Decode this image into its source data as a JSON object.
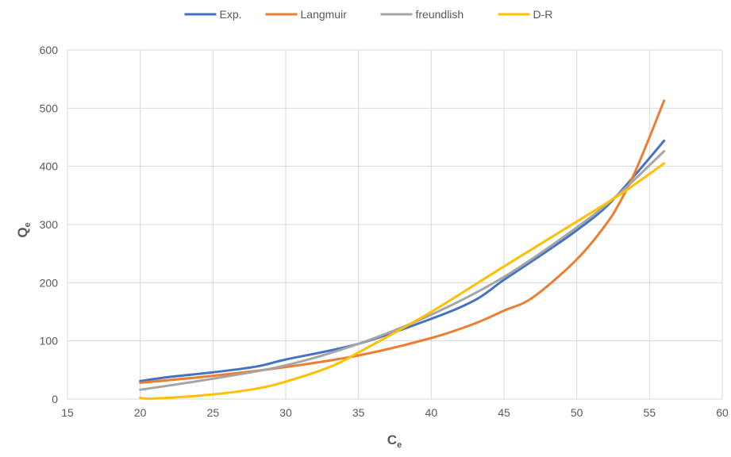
{
  "chart_data": {
    "type": "line",
    "title": "",
    "xlabel": "C",
    "xlabel_sub": "e",
    "ylabel": "Q",
    "ylabel_sub": "e",
    "xlim": [
      15,
      60
    ],
    "ylim": [
      0,
      600
    ],
    "xticks": [
      15,
      20,
      25,
      30,
      35,
      40,
      45,
      50,
      55,
      60
    ],
    "yticks": [
      0,
      100,
      200,
      300,
      400,
      500,
      600
    ],
    "grid": true,
    "legend_position": "top",
    "series": [
      {
        "name": "Exp.",
        "color": "#4472C4",
        "x": [
          20,
          22,
          25,
          28,
          30,
          35,
          40,
          43,
          45,
          48,
          50,
          52,
          54,
          56
        ],
        "y": [
          31,
          38,
          46,
          56,
          68,
          95,
          138,
          170,
          205,
          255,
          290,
          330,
          385,
          444
        ]
      },
      {
        "name": "Langmuir",
        "color": "#ED7D31",
        "x": [
          20,
          25,
          30,
          35,
          40,
          43,
          45,
          47,
          50,
          52,
          53,
          54,
          55,
          56
        ],
        "y": [
          28,
          40,
          55,
          75,
          105,
          130,
          152,
          175,
          240,
          300,
          340,
          390,
          450,
          513
        ]
      },
      {
        "name": "freundlish",
        "color": "#A5A5A5",
        "x": [
          20,
          25,
          30,
          35,
          40,
          45,
          50,
          53,
          56
        ],
        "y": [
          16,
          35,
          58,
          95,
          145,
          210,
          295,
          355,
          426
        ]
      },
      {
        "name": "D-R",
        "color": "#FFC000",
        "x": [
          20,
          21,
          25,
          28,
          30,
          33,
          35,
          40,
          45,
          50,
          53,
          56
        ],
        "y": [
          2,
          1,
          8,
          18,
          30,
          55,
          80,
          150,
          228,
          305,
          352,
          405
        ]
      }
    ]
  }
}
